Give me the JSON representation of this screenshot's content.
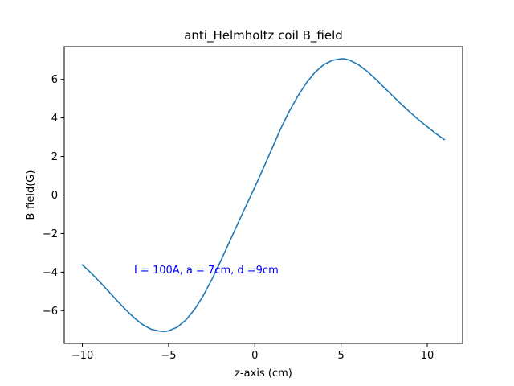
{
  "chart_data": {
    "type": "line",
    "title": "anti_Helmholtz coil B_field",
    "xlabel": "z-axis (cm)",
    "ylabel": "B-field(G)",
    "xlim": [
      -11.05,
      12.05
    ],
    "ylim": [
      -7.7,
      7.7
    ],
    "xticks": [
      -10,
      -5,
      0,
      5,
      10
    ],
    "yticks": [
      -6,
      -4,
      -2,
      0,
      2,
      4,
      6
    ],
    "xtick_labels": [
      "−10",
      "−5",
      "0",
      "5",
      "10"
    ],
    "ytick_labels": [
      "−6",
      "−4",
      "−2",
      "0",
      "2",
      "4",
      "6"
    ],
    "grid": false,
    "annotation": {
      "text": "I = 100A, a = 7cm, d =9cm",
      "x": -7,
      "y": -3.85,
      "color": "#0000ff"
    },
    "series": [
      {
        "color": "#1f77b4",
        "x": [
          -10,
          -9.5,
          -9,
          -8.5,
          -8,
          -7.5,
          -7,
          -6.5,
          -6,
          -5.5,
          -5.2,
          -5,
          -4.5,
          -4,
          -3.5,
          -3,
          -2.5,
          -2,
          -1.5,
          -1,
          -0.5,
          0,
          0.5,
          1,
          1.5,
          2,
          2.5,
          3,
          3.5,
          4,
          4.5,
          5,
          5.2,
          5.5,
          6,
          6.5,
          7,
          7.5,
          8,
          8.5,
          9,
          9.5,
          10,
          10.5,
          11
        ],
        "y": [
          -3.62,
          -4.04,
          -4.5,
          -4.98,
          -5.47,
          -5.94,
          -6.37,
          -6.73,
          -6.97,
          -7.07,
          -7.08,
          -7.05,
          -6.86,
          -6.49,
          -5.95,
          -5.24,
          -4.4,
          -3.47,
          -2.49,
          -1.51,
          -0.55,
          0.41,
          1.4,
          2.42,
          3.44,
          4.35,
          5.14,
          5.83,
          6.38,
          6.77,
          6.99,
          7.07,
          7.07,
          7.0,
          6.77,
          6.43,
          6.02,
          5.58,
          5.14,
          4.71,
          4.3,
          3.9,
          3.54,
          3.19,
          2.87
        ]
      }
    ]
  }
}
